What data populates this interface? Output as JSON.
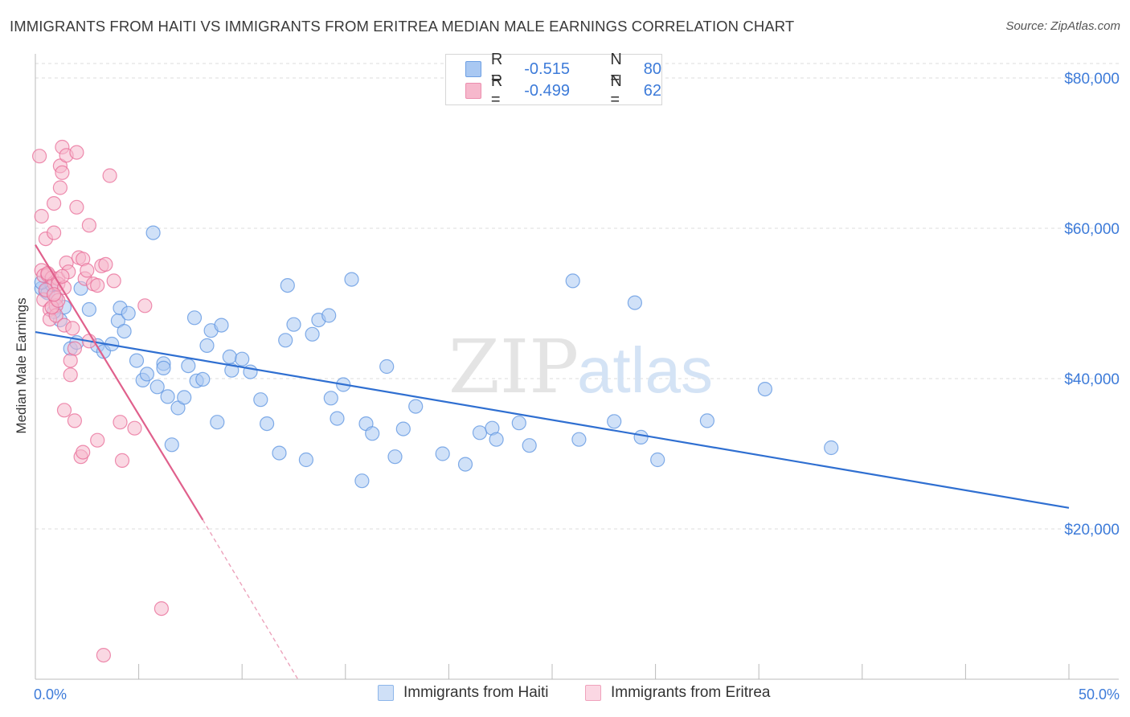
{
  "title": "IMMIGRANTS FROM HAITI VS IMMIGRANTS FROM ERITREA MEDIAN MALE EARNINGS CORRELATION CHART",
  "source": "Source: ZipAtlas.com",
  "watermark": {
    "zip": "ZIP",
    "atlas": "atlas"
  },
  "legend": {
    "r_label": "R =",
    "n_label": "N =",
    "rows": [
      {
        "r": "-0.515",
        "n": "80",
        "color": "#a9c8f2"
      },
      {
        "r": "-0.499",
        "n": "62",
        "color": "#f6b8cc"
      }
    ]
  },
  "bottom_legend": [
    {
      "label": "Immigrants from Haiti",
      "color": "#a9c8f2"
    },
    {
      "label": "Immigrants from Eritrea",
      "color": "#f6b8cc"
    }
  ],
  "chart_data": {
    "type": "scatter",
    "title": "IMMIGRANTS FROM HAITI VS IMMIGRANTS FROM ERITREA MEDIAN MALE EARNINGS CORRELATION CHART",
    "xlabel": "",
    "ylabel": "Median Male Earnings",
    "xlim": [
      0,
      50
    ],
    "ylim": [
      0,
      80000
    ],
    "x_tick_labels": [
      "0.0%",
      "50.0%"
    ],
    "y_ticks": [
      20000,
      40000,
      60000,
      80000
    ],
    "y_tick_labels": [
      "$20,000",
      "$40,000",
      "$60,000",
      "$80,000"
    ],
    "grid": true,
    "series": [
      {
        "name": "Immigrants from Haiti",
        "color": "#5b93e0",
        "fill": "#a9c8f2",
        "points": [
          [
            0.3,
            52000
          ],
          [
            0.5,
            51600
          ],
          [
            0.6,
            51400
          ],
          [
            0.8,
            52500
          ],
          [
            1.0,
            50800
          ],
          [
            1.2,
            47800
          ],
          [
            1.4,
            49500
          ],
          [
            1.7,
            44000
          ],
          [
            2.2,
            52000
          ],
          [
            2.6,
            49200
          ],
          [
            3.0,
            44400
          ],
          [
            3.3,
            43600
          ],
          [
            3.7,
            44600
          ],
          [
            4.0,
            47700
          ],
          [
            4.1,
            49400
          ],
          [
            4.3,
            46300
          ],
          [
            4.5,
            48700
          ],
          [
            4.9,
            42400
          ],
          [
            5.2,
            39800
          ],
          [
            5.4,
            40600
          ],
          [
            5.7,
            59400
          ],
          [
            5.9,
            38900
          ],
          [
            6.2,
            42000
          ],
          [
            6.4,
            37600
          ],
          [
            6.9,
            36100
          ],
          [
            7.2,
            37500
          ],
          [
            7.4,
            41700
          ],
          [
            7.7,
            48100
          ],
          [
            7.8,
            39700
          ],
          [
            8.1,
            39900
          ],
          [
            8.3,
            44400
          ],
          [
            8.5,
            46400
          ],
          [
            8.8,
            34200
          ],
          [
            9.0,
            47100
          ],
          [
            9.4,
            42900
          ],
          [
            9.5,
            41100
          ],
          [
            10.0,
            42600
          ],
          [
            10.4,
            40900
          ],
          [
            10.9,
            37200
          ],
          [
            11.2,
            34000
          ],
          [
            11.8,
            30100
          ],
          [
            12.1,
            45100
          ],
          [
            12.2,
            52400
          ],
          [
            12.5,
            47200
          ],
          [
            13.1,
            29200
          ],
          [
            13.4,
            45900
          ],
          [
            13.7,
            47800
          ],
          [
            14.2,
            48400
          ],
          [
            14.6,
            34700
          ],
          [
            14.3,
            37400
          ],
          [
            14.9,
            39200
          ],
          [
            15.3,
            53200
          ],
          [
            15.8,
            26400
          ],
          [
            16.0,
            34000
          ],
          [
            16.3,
            32700
          ],
          [
            17.0,
            41600
          ],
          [
            17.4,
            29600
          ],
          [
            17.8,
            33300
          ],
          [
            18.4,
            36300
          ],
          [
            19.7,
            30000
          ],
          [
            20.8,
            28600
          ],
          [
            21.5,
            32800
          ],
          [
            22.1,
            33400
          ],
          [
            22.3,
            31900
          ],
          [
            23.4,
            34100
          ],
          [
            23.9,
            31100
          ],
          [
            26.0,
            53000
          ],
          [
            26.3,
            31900
          ],
          [
            28.0,
            34300
          ],
          [
            29.0,
            50100
          ],
          [
            29.3,
            32200
          ],
          [
            30.1,
            29200
          ],
          [
            32.5,
            34400
          ],
          [
            35.3,
            38600
          ],
          [
            38.5,
            30800
          ],
          [
            0.3,
            52800
          ],
          [
            0.9,
            48900
          ],
          [
            2.0,
            44800
          ],
          [
            6.6,
            31200
          ],
          [
            6.2,
            41400
          ]
        ]
      },
      {
        "name": "Immigrants from Eritrea",
        "color": "#e86a96",
        "fill": "#f6b8cc",
        "points": [
          [
            0.2,
            69600
          ],
          [
            0.3,
            61600
          ],
          [
            0.3,
            54400
          ],
          [
            0.4,
            53700
          ],
          [
            0.4,
            50500
          ],
          [
            0.5,
            58600
          ],
          [
            0.6,
            53800
          ],
          [
            0.7,
            49200
          ],
          [
            0.7,
            47900
          ],
          [
            0.8,
            53400
          ],
          [
            0.9,
            52700
          ],
          [
            0.9,
            59400
          ],
          [
            0.9,
            63300
          ],
          [
            1.0,
            50700
          ],
          [
            1.0,
            49700
          ],
          [
            1.0,
            48400
          ],
          [
            1.1,
            53300
          ],
          [
            1.1,
            52600
          ],
          [
            1.2,
            65400
          ],
          [
            1.2,
            68300
          ],
          [
            1.3,
            70800
          ],
          [
            1.3,
            67400
          ],
          [
            1.4,
            52100
          ],
          [
            1.4,
            47100
          ],
          [
            1.5,
            69700
          ],
          [
            1.5,
            55400
          ],
          [
            1.6,
            54200
          ],
          [
            1.7,
            42400
          ],
          [
            1.7,
            40500
          ],
          [
            1.8,
            46700
          ],
          [
            1.9,
            44000
          ],
          [
            2.0,
            62800
          ],
          [
            2.0,
            70100
          ],
          [
            2.1,
            56100
          ],
          [
            2.3,
            55900
          ],
          [
            2.4,
            53300
          ],
          [
            2.5,
            54400
          ],
          [
            2.6,
            60400
          ],
          [
            2.6,
            45000
          ],
          [
            2.8,
            52600
          ],
          [
            3.0,
            52400
          ],
          [
            3.2,
            55000
          ],
          [
            3.4,
            55200
          ],
          [
            3.6,
            67000
          ],
          [
            3.8,
            53000
          ],
          [
            4.1,
            34200
          ],
          [
            4.2,
            29100
          ],
          [
            4.8,
            33400
          ],
          [
            5.3,
            49700
          ],
          [
            6.1,
            9400
          ],
          [
            1.4,
            35800
          ],
          [
            1.9,
            34400
          ],
          [
            2.2,
            29600
          ],
          [
            2.3,
            30200
          ],
          [
            3.0,
            31800
          ],
          [
            3.3,
            3200
          ],
          [
            0.5,
            51800
          ],
          [
            0.8,
            49500
          ],
          [
            1.1,
            50400
          ],
          [
            0.6,
            54000
          ],
          [
            1.3,
            53600
          ],
          [
            0.9,
            51200
          ]
        ]
      }
    ],
    "trend_lines": [
      {
        "series": "Immigrants from Haiti",
        "x": [
          0,
          50
        ],
        "y": [
          46200,
          22800
        ]
      },
      {
        "series": "Immigrants from Eritrea",
        "x": [
          0,
          8.1
        ],
        "y": [
          57800,
          21200
        ],
        "dashed_extension_to": [
          12.7,
          0
        ]
      }
    ]
  }
}
